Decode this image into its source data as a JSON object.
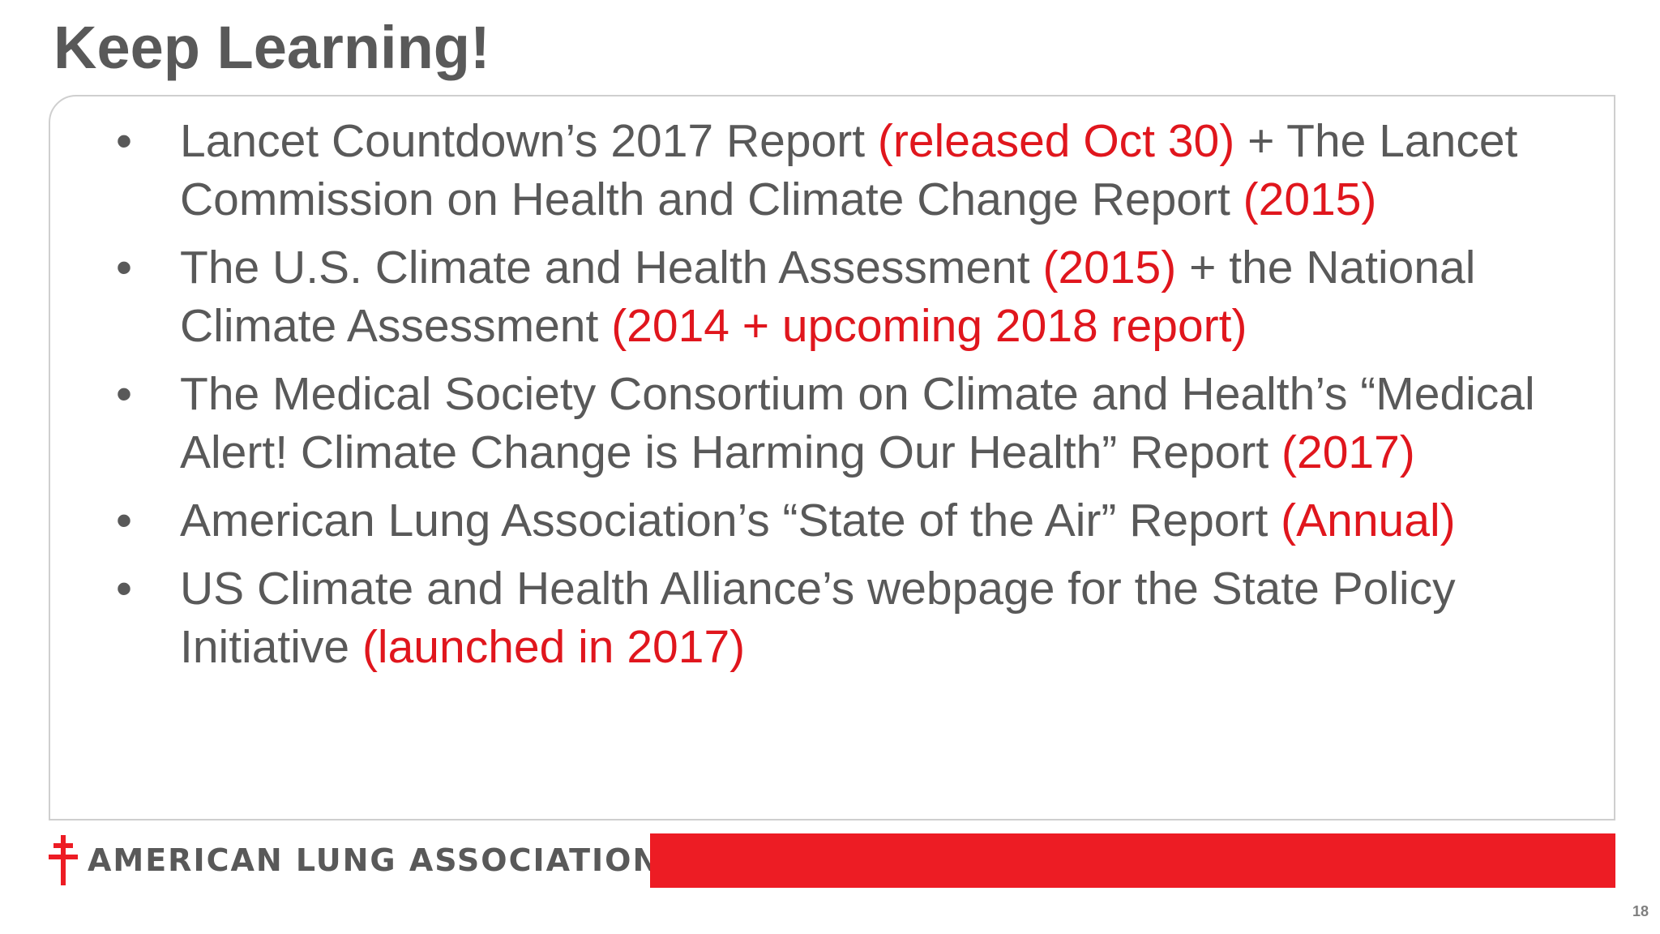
{
  "slide": {
    "title": "Keep Learning!",
    "page_number": "18"
  },
  "bullets": [
    [
      {
        "text": "Lancet Countdown’s 2017 Report ",
        "highlight": false
      },
      {
        "text": "(released Oct 30)",
        "highlight": true
      },
      {
        "text": " + The Lancet Commission on Health and Climate Change Report ",
        "highlight": false
      },
      {
        "text": "(2015)",
        "highlight": true
      }
    ],
    [
      {
        "text": "The U.S. Climate and Health Assessment ",
        "highlight": false
      },
      {
        "text": "(2015)",
        "highlight": true
      },
      {
        "text": " + the National Climate Assessment ",
        "highlight": false
      },
      {
        "text": "(2014 + upcoming 2018 report)",
        "highlight": true
      }
    ],
    [
      {
        "text": "The Medical Society Consortium on Climate and Health’s “Medical Alert! Climate Change is Harming Our Health” Report ",
        "highlight": false
      },
      {
        "text": "(2017)",
        "highlight": true
      }
    ],
    [
      {
        "text": "American Lung Association’s “State of the Air” Report ",
        "highlight": false
      },
      {
        "text": "(Annual)",
        "highlight": true
      }
    ],
    [
      {
        "text": "US Climate and Health Alliance’s webpage for the State Policy Initiative ",
        "highlight": false
      },
      {
        "text": "(launched in 2017)",
        "highlight": true
      }
    ]
  ],
  "bullet_glyph": "•",
  "footer": {
    "logo_text": "AMERICAN LUNG ASSOCIATION",
    "registered_mark": "®",
    "logo_icon": "lorraine-cross-icon",
    "bar_color": "#ed1c24"
  },
  "colors": {
    "text": "#595959",
    "highlight": "#e0161d"
  }
}
